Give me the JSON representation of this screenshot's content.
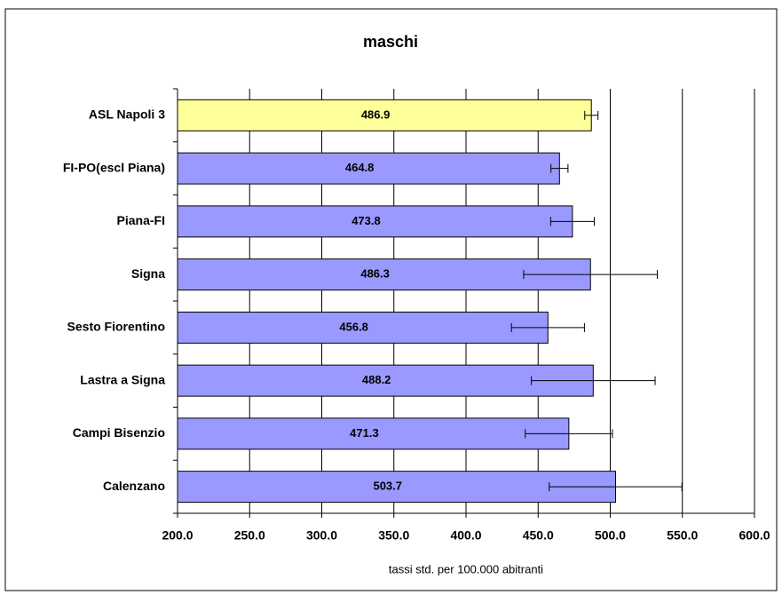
{
  "chart_data": {
    "type": "hbar",
    "title": "maschi",
    "x_label": "tassi std. per 100.000 abitranti",
    "categories": [
      "ASL Napoli 3",
      "FI-PO(escl Piana)",
      "Piana-FI",
      "Signa",
      "Sesto Fiorentino",
      "Lastra a Signa",
      "Campi Bisenzio",
      "Calenzano"
    ],
    "values": [
      486.9,
      464.8,
      473.8,
      486.3,
      456.8,
      488.2,
      471.3,
      503.7
    ],
    "errors": [
      4.6,
      5.9,
      15.1,
      46.3,
      25.3,
      42.9,
      30.2,
      46.0
    ],
    "colors": [
      "#ffff99",
      "#9999ff",
      "#9999ff",
      "#9999ff",
      "#9999ff",
      "#9999ff",
      "#9999ff",
      "#9999ff"
    ],
    "xlim": [
      200,
      600
    ],
    "xticks": [
      {
        "value": 200,
        "label": "200.0"
      },
      {
        "value": 250,
        "label": "250.0"
      },
      {
        "value": 300,
        "label": "300.0"
      },
      {
        "value": 350,
        "label": "350.0"
      },
      {
        "value": 400,
        "label": "400.0"
      },
      {
        "value": 450,
        "label": "450.0"
      },
      {
        "value": 500,
        "label": "500.0"
      },
      {
        "value": 550,
        "label": "550.0"
      },
      {
        "value": 600,
        "label": "600.0"
      }
    ],
    "grid": true
  }
}
